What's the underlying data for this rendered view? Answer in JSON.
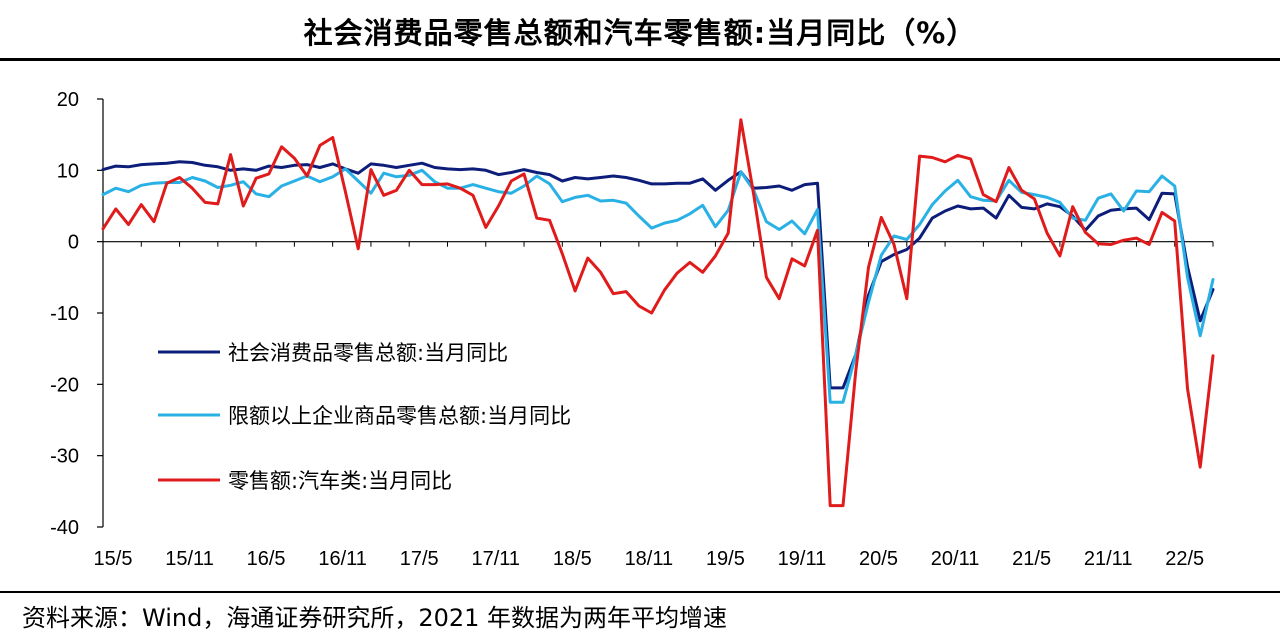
{
  "source_note": "资料来源：Wind，海通证券研究所，2021 年数据为两年平均增速",
  "chart_data": {
    "type": "line",
    "title": "社会消费品零售总额和汽车零售额:当月同比（%）",
    "xlabel": "",
    "ylabel": "",
    "ylim": [
      -40,
      20
    ],
    "yticks": [
      "20",
      "10",
      "0",
      "-10",
      "-20",
      "-30",
      "-40"
    ],
    "ytick_values": [
      20,
      10,
      0,
      -10,
      -20,
      -30,
      -40
    ],
    "xtick_labels": [
      "15/5",
      "15/11",
      "16/5",
      "16/11",
      "17/5",
      "17/11",
      "18/5",
      "18/11",
      "19/5",
      "19/11",
      "20/5",
      "20/11",
      "21/5",
      "21/11",
      "22/5"
    ],
    "xtick_index": [
      0,
      6,
      12,
      18,
      24,
      30,
      36,
      42,
      48,
      54,
      60,
      66,
      72,
      78,
      84
    ],
    "legend_position": "left-center",
    "series": [
      {
        "name": "社会消费品零售总额:当月同比",
        "color": "#0d1d7a",
        "values": [
          10.1,
          10.6,
          10.5,
          10.8,
          10.9,
          11.0,
          11.2,
          11.1,
          10.7,
          10.5,
          10.0,
          10.2,
          10.0,
          10.6,
          10.4,
          10.7,
          10.8,
          10.4,
          10.9,
          10.2,
          9.6,
          10.9,
          10.7,
          10.4,
          10.7,
          11.0,
          10.4,
          10.2,
          10.1,
          10.2,
          10.0,
          9.4,
          9.7,
          10.1,
          9.7,
          9.4,
          8.5,
          9.0,
          8.8,
          9.0,
          9.2,
          9.0,
          8.6,
          8.1,
          8.1,
          8.2,
          8.2,
          8.8,
          7.2,
          8.6,
          9.8,
          7.5,
          7.6,
          7.8,
          7.2,
          8.0,
          8.2,
          -20.5,
          -20.5,
          -15.8,
          -7.5,
          -2.8,
          -1.8,
          -1.1,
          0.5,
          3.3,
          4.3,
          5.0,
          4.6,
          4.7,
          3.3,
          6.5,
          4.8,
          4.6,
          5.3,
          4.9,
          3.6,
          1.6,
          3.6,
          4.4,
          4.6,
          4.7,
          3.1,
          6.8,
          6.7,
          -3.5,
          -11.1,
          -6.7
        ],
        "sampled": true
      },
      {
        "name": "限额以上企业商品零售总额:当月同比",
        "color": "#29b1e6",
        "values": [
          6.6,
          7.5,
          7.0,
          7.9,
          8.2,
          8.3,
          8.3,
          9.0,
          8.5,
          7.6,
          7.9,
          8.4,
          6.7,
          6.3,
          7.8,
          8.5,
          9.2,
          8.4,
          9.1,
          10.2,
          8.5,
          6.8,
          9.6,
          9.1,
          9.3,
          10.0,
          8.4,
          7.5,
          7.5,
          8.0,
          7.5,
          7.0,
          6.8,
          7.8,
          9.2,
          8.1,
          5.6,
          6.2,
          6.5,
          5.7,
          5.8,
          5.4,
          3.6,
          1.9,
          2.6,
          3.0,
          3.9,
          5.1,
          2.1,
          4.4,
          9.8,
          7.2,
          2.8,
          1.7,
          2.9,
          1.1,
          4.5,
          -22.5,
          -22.5,
          -15.8,
          -8.5,
          -1.9,
          0.8,
          0.3,
          2.4,
          5.2,
          7.1,
          8.6,
          6.3,
          5.8,
          5.7,
          8.6,
          6.9,
          6.6,
          6.2,
          5.5,
          3.3,
          3.0,
          6.1,
          6.7,
          4.3,
          7.1,
          7.0,
          9.2,
          7.8,
          -5.0,
          -13.2,
          -5.3
        ],
        "sampled": true
      },
      {
        "name": "零售额:汽车类:当月同比",
        "color": "#e01b1b",
        "values": [
          1.8,
          4.6,
          2.4,
          5.2,
          2.8,
          8.2,
          9.0,
          7.5,
          5.5,
          5.3,
          12.2,
          5.0,
          8.9,
          9.5,
          13.3,
          11.7,
          9.2,
          13.5,
          14.6,
          7.0,
          -1.0,
          10.1,
          6.5,
          7.2,
          10.0,
          8.0,
          8.0,
          8.1,
          7.5,
          6.5,
          2.0,
          5.0,
          8.5,
          9.5,
          3.3,
          3.0,
          -1.7,
          -6.9,
          -2.3,
          -4.3,
          -7.3,
          -7.0,
          -9.0,
          -10.0,
          -6.8,
          -4.4,
          -2.9,
          -4.3,
          -2.0,
          1.2,
          17.1,
          6.6,
          -5.0,
          -8.0,
          -2.4,
          -3.4,
          1.6,
          -37.0,
          -37.0,
          -18.1,
          -3.6,
          3.4,
          -0.4,
          -8.0,
          12.0,
          11.8,
          11.2,
          12.1,
          11.6,
          6.6,
          5.6,
          10.4,
          7.2,
          6.0,
          1.2,
          -2.0,
          4.9,
          1.3,
          -0.3,
          -0.4,
          0.2,
          0.5,
          -0.4,
          4.1,
          2.9,
          -20.6,
          -31.6,
          -16.0
        ],
        "sampled": true
      }
    ]
  }
}
